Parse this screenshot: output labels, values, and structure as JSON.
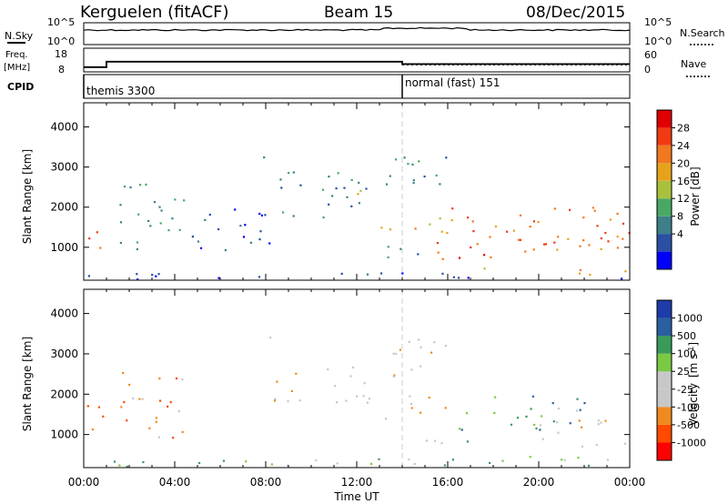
{
  "header": {
    "station": "Kerguelen (fitACF)",
    "beam": "Beam 15",
    "date": "08/Dec/2015"
  },
  "top_panels": {
    "nsky_label": "N.Sky",
    "nsearch_label": "N.Search",
    "freq_label_1": "Freq.",
    "freq_label_2": "[MHz]",
    "nave_label": "Nave",
    "cpid_label": "CPID",
    "nsky_ticks": [
      "10^5",
      "10^0"
    ],
    "nsearch_ticks": [
      "10^5",
      "10^0"
    ],
    "freq_ticks": [
      "18",
      "8"
    ],
    "nave_ticks": [
      "60",
      "0"
    ],
    "cpid_segments": [
      {
        "label": "themis 3300",
        "start_hour": 0
      },
      {
        "label": "normal (fast) 151",
        "start_hour": 14
      }
    ],
    "freq_steps": [
      {
        "start": 0,
        "end": 1,
        "freq": 10.0
      },
      {
        "start": 1,
        "end": 14,
        "freq": 12.3
      },
      {
        "start": 14,
        "end": 24,
        "freq": 11.3
      }
    ],
    "nave_level": 18
  },
  "chart_data": [
    {
      "type": "heatmap",
      "panel": "power",
      "xlabel": "",
      "ylabel": "Slant Range [km]",
      "xlim": [
        0,
        24
      ],
      "ylim": [
        180,
        4600
      ],
      "yticks": [
        1000,
        2000,
        3000,
        4000
      ],
      "colorbar_label": "Power [dB]",
      "colorbar_ticks": [
        "28",
        "24",
        "20",
        "16",
        "12",
        "8",
        "4"
      ],
      "colors": [
        "#0000ff",
        "#2a4fa5",
        "#3e7f8a",
        "#4aa866",
        "#a8c13c",
        "#e6a21c",
        "#f0781e",
        "#f03a12",
        "#e00000"
      ],
      "regions": [
        {
          "x0": 0.0,
          "x1": 0.8,
          "y0": 680,
          "y1": 1750,
          "level": 7
        },
        {
          "x0": 0.0,
          "x1": 24.0,
          "y0": 200,
          "y1": 380,
          "level": 1
        },
        {
          "x0": 1.5,
          "x1": 4.5,
          "y0": 900,
          "y1": 2700,
          "level": 2
        },
        {
          "x0": 4.5,
          "x1": 8.5,
          "y0": 900,
          "y1": 2100,
          "level": 1
        },
        {
          "x0": 7.6,
          "x1": 8.3,
          "y0": 3100,
          "y1": 3450,
          "level": 1
        },
        {
          "x0": 8.5,
          "x1": 13.0,
          "y0": 1700,
          "y1": 2900,
          "level": 2
        },
        {
          "x0": 11.8,
          "x1": 13.0,
          "y0": 2300,
          "y1": 2800,
          "level": 5
        },
        {
          "x0": 13.0,
          "x1": 16.2,
          "y0": 1350,
          "y1": 1950,
          "level": 5
        },
        {
          "x0": 13.2,
          "x1": 15.0,
          "y0": 750,
          "y1": 1300,
          "level": 2
        },
        {
          "x0": 13.0,
          "x1": 16.0,
          "y0": 2200,
          "y1": 3300,
          "level": 2
        },
        {
          "x0": 14.7,
          "x1": 18.5,
          "y0": 700,
          "y1": 1150,
          "level": 7
        },
        {
          "x0": 16.0,
          "x1": 24.0,
          "y0": 1100,
          "y1": 2100,
          "level": 6
        },
        {
          "x0": 18.5,
          "x1": 24.0,
          "y0": 800,
          "y1": 1400,
          "level": 6
        },
        {
          "x0": 17.5,
          "x1": 24.0,
          "y0": 300,
          "y1": 500,
          "level": 5
        }
      ]
    },
    {
      "type": "heatmap",
      "panel": "velocity",
      "xlabel": "Time UT",
      "ylabel": "Slant Range [km]",
      "xlim": [
        0,
        24
      ],
      "ylim": [
        180,
        4600
      ],
      "yticks": [
        1000,
        2000,
        3000,
        4000
      ],
      "xticks": [
        "00:00",
        "04:00",
        "08:00",
        "12:00",
        "16:00",
        "20:00",
        "00:00"
      ],
      "colorbar_label_1": "Velocity",
      "colorbar_label_2": "[m s",
      "colorbar_label_3": "-1",
      "colorbar_label_4": "]",
      "colorbar_ticks": [
        "1000",
        "500",
        "100",
        "25",
        "-25",
        "-100",
        "-500",
        "-1000"
      ],
      "colors": [
        "#ff0000",
        "#ff4a00",
        "#f08a1e",
        "#c8c8c8",
        "#c8c8c8",
        "#7ac943",
        "#3a9a5a",
        "#2a5fa0",
        "#1e3ca8"
      ],
      "regions": [
        {
          "x0": 0.0,
          "x1": 0.9,
          "y0": 700,
          "y1": 1750,
          "level": 1
        },
        {
          "x0": 0.0,
          "x1": 24.0,
          "y0": 200,
          "y1": 420,
          "level": 5
        },
        {
          "x0": 1.6,
          "x1": 4.8,
          "y0": 900,
          "y1": 2600,
          "level": 2
        },
        {
          "x0": 8.3,
          "x1": 13.0,
          "y0": 1800,
          "y1": 2800,
          "level": 3
        },
        {
          "x0": 7.6,
          "x1": 8.3,
          "y0": 3200,
          "y1": 3450,
          "level": 4
        },
        {
          "x0": 13.0,
          "x1": 16.2,
          "y0": 1400,
          "y1": 2000,
          "level": 3
        },
        {
          "x0": 13.0,
          "x1": 16.0,
          "y0": 2300,
          "y1": 3400,
          "level": 3
        },
        {
          "x0": 14.5,
          "x1": 17.5,
          "y0": 800,
          "y1": 1200,
          "level": 5
        },
        {
          "x0": 16.5,
          "x1": 22.0,
          "y0": 1100,
          "y1": 2000,
          "level": 6
        },
        {
          "x0": 20.0,
          "x1": 24.0,
          "y0": 700,
          "y1": 1700,
          "level": 3
        },
        {
          "x0": 17.5,
          "x1": 24.0,
          "y0": 300,
          "y1": 500,
          "level": 5
        }
      ]
    }
  ]
}
